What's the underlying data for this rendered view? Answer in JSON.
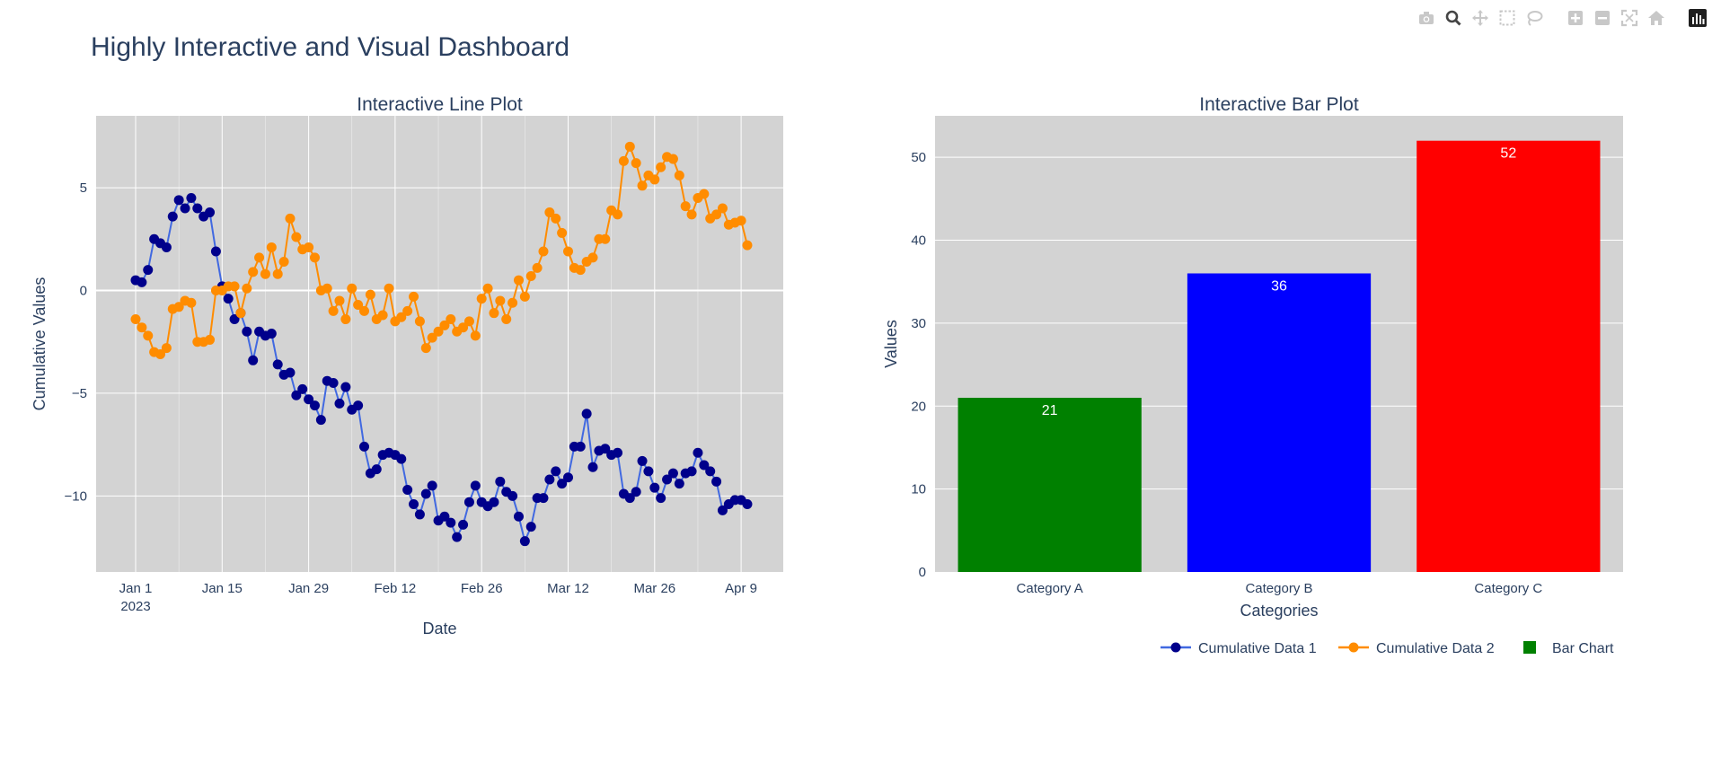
{
  "title": "Highly Interactive and Visual Dashboard",
  "modebar": {
    "icons": [
      "camera-icon",
      "zoom-icon",
      "pan-icon",
      "box-select-icon",
      "lasso-icon",
      "zoom-in-icon",
      "zoom-out-icon",
      "autoscale-icon",
      "home-icon",
      "plotly-logo-icon"
    ]
  },
  "chart_data": [
    {
      "type": "line",
      "title": "Interactive Line Plot",
      "xlabel": "Date",
      "ylabel": "Cumulative Values",
      "x_start": "2023-01-01",
      "x_ticks": [
        "Jan 1\n2023",
        "Jan 15",
        "Jan 29",
        "Feb 12",
        "Feb 26",
        "Mar 12",
        "Mar 26",
        "Apr 9"
      ],
      "y_ticks": [
        "5",
        "0",
        "−5",
        "−10"
      ],
      "ylim": [
        -13.7,
        8.5
      ],
      "grid": true,
      "series": [
        {
          "name": "Cumulative Data 1",
          "color": "#00008b",
          "line_color": "#4169e1",
          "values": [
            0.5,
            0.4,
            1.0,
            2.5,
            2.3,
            2.1,
            3.6,
            4.4,
            4.0,
            4.5,
            4.0,
            3.6,
            3.8,
            1.9,
            0.2,
            -0.4,
            -1.4,
            -1.1,
            -2.0,
            -3.4,
            -2.0,
            -2.2,
            -2.1,
            -3.6,
            -4.1,
            -4.0,
            -5.1,
            -4.8,
            -5.3,
            -5.6,
            -6.3,
            -4.4,
            -4.5,
            -5.5,
            -4.7,
            -5.8,
            -5.6,
            -7.6,
            -8.9,
            -8.7,
            -8.0,
            -7.9,
            -8.0,
            -8.2,
            -9.7,
            -10.4,
            -10.9,
            -9.9,
            -9.5,
            -11.2,
            -11.0,
            -11.3,
            -12.0,
            -11.4,
            -10.3,
            -9.5,
            -10.3,
            -10.5,
            -10.3,
            -9.3,
            -9.8,
            -10.0,
            -11.0,
            -12.2,
            -11.5,
            -10.1,
            -10.1,
            -9.2,
            -8.8,
            -9.4,
            -9.1,
            -7.6,
            -7.6,
            -6.0,
            -8.6,
            -7.8,
            -7.7,
            -8.0,
            -7.9,
            -9.9,
            -10.1,
            -9.8,
            -8.3,
            -8.8,
            -9.6,
            -10.1,
            -9.2,
            -8.9,
            -9.4,
            -8.9,
            -8.8,
            -7.9,
            -8.5,
            -8.8,
            -9.3,
            -10.7,
            -10.4,
            -10.2,
            -10.2,
            -10.4
          ]
        },
        {
          "name": "Cumulative Data 2",
          "color": "#ff8c00",
          "values": [
            -1.4,
            -1.8,
            -2.2,
            -3.0,
            -3.1,
            -2.8,
            -0.9,
            -0.8,
            -0.5,
            -0.6,
            -2.5,
            -2.5,
            -2.4,
            0.0,
            0.0,
            0.2,
            0.2,
            -1.1,
            0.1,
            0.9,
            1.6,
            0.8,
            2.1,
            0.8,
            1.4,
            3.5,
            2.6,
            2.0,
            2.1,
            1.6,
            0.0,
            0.1,
            -1.0,
            -0.5,
            -1.4,
            0.1,
            -0.7,
            -1.0,
            -0.2,
            -1.4,
            -1.2,
            0.1,
            -1.5,
            -1.3,
            -1.0,
            -0.3,
            -1.5,
            -2.8,
            -2.3,
            -2.0,
            -1.7,
            -1.4,
            -2.0,
            -1.8,
            -1.5,
            -2.2,
            -0.4,
            0.1,
            -1.1,
            -0.5,
            -1.4,
            -0.6,
            0.5,
            -0.3,
            0.7,
            1.1,
            1.9,
            3.8,
            3.5,
            2.8,
            1.9,
            1.1,
            1.0,
            1.4,
            1.6,
            2.5,
            2.5,
            3.9,
            3.7,
            6.3,
            7.0,
            6.2,
            5.1,
            5.6,
            5.4,
            6.0,
            6.5,
            6.4,
            5.6,
            4.1,
            3.7,
            4.5,
            4.7,
            3.5,
            3.7,
            4.0,
            3.2,
            3.3,
            3.4,
            2.2
          ]
        }
      ]
    },
    {
      "type": "bar",
      "title": "Interactive Bar Plot",
      "xlabel": "Categories",
      "ylabel": "Values",
      "categories": [
        "Category A",
        "Category B",
        "Category C"
      ],
      "values": [
        21,
        36,
        52
      ],
      "colors": [
        "#008000",
        "#0000ff",
        "#ff0000"
      ],
      "ylim": [
        0,
        55
      ],
      "y_ticks": [
        "0",
        "10",
        "20",
        "30",
        "40",
        "50"
      ],
      "grid": true
    }
  ],
  "legend": {
    "position": "bottom-right",
    "items": [
      {
        "label": "Cumulative Data 1",
        "color": "#4169e1",
        "marker": "#00008b",
        "kind": "line"
      },
      {
        "label": "Cumulative Data 2",
        "color": "#ff8c00",
        "marker": "#ff8c00",
        "kind": "line"
      },
      {
        "label": "Bar Chart",
        "color": "#008000",
        "kind": "square"
      }
    ]
  }
}
